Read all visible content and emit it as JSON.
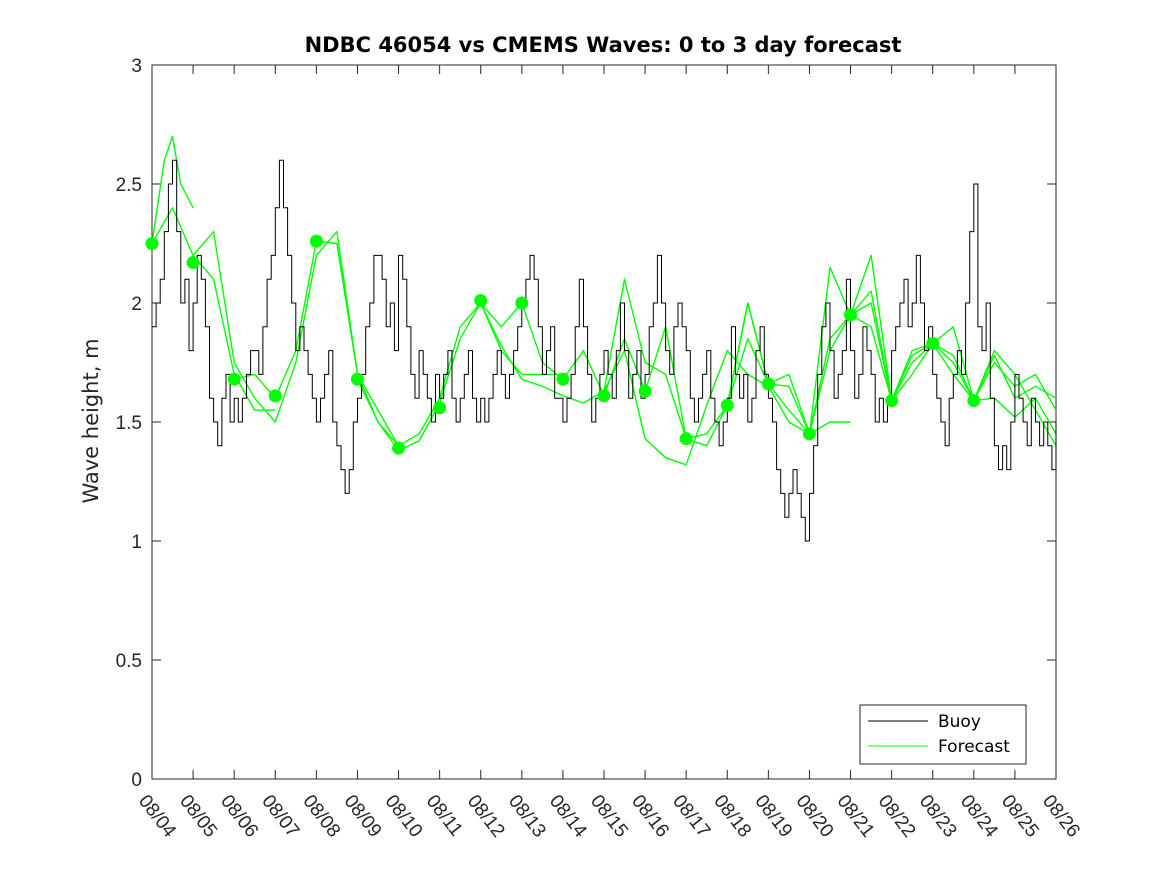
{
  "chart_data": {
    "type": "line",
    "title": "NDBC 46054 vs CMEMS Waves: 0 to 3 day forecast",
    "xlabel": "",
    "ylabel": "Wave height, m",
    "xlim": [
      0,
      22
    ],
    "ylim": [
      0,
      3
    ],
    "yticks": [
      0,
      0.5,
      1,
      1.5,
      2,
      2.5,
      3
    ],
    "ytick_labels": [
      "0",
      "0.5",
      "1",
      "1.5",
      "2",
      "2.5",
      "3"
    ],
    "xtick_labels": [
      "08/04",
      "08/05",
      "08/06",
      "08/07",
      "08/08",
      "08/09",
      "08/10",
      "08/11",
      "08/12",
      "08/13",
      "08/14",
      "08/15",
      "08/16",
      "08/17",
      "08/18",
      "08/19",
      "08/20",
      "08/21",
      "08/22",
      "08/23",
      "08/24",
      "08/25",
      "08/26"
    ],
    "legend": {
      "location": "bottom-right",
      "entries": [
        "Buoy",
        "Forecast"
      ]
    },
    "colors": {
      "buoy": "#000000",
      "forecast": "#00ff00"
    },
    "series": [
      {
        "name": "Buoy",
        "x": [
          0,
          0.1,
          0.2,
          0.3,
          0.4,
          0.5,
          0.6,
          0.7,
          0.8,
          0.9,
          1.0,
          1.1,
          1.2,
          1.3,
          1.4,
          1.5,
          1.6,
          1.7,
          1.8,
          1.9,
          2.0,
          2.1,
          2.2,
          2.3,
          2.4,
          2.5,
          2.6,
          2.7,
          2.8,
          2.9,
          3.0,
          3.1,
          3.2,
          3.3,
          3.4,
          3.5,
          3.6,
          3.7,
          3.8,
          3.9,
          4.0,
          4.1,
          4.2,
          4.3,
          4.4,
          4.5,
          4.6,
          4.7,
          4.8,
          4.9,
          5.0,
          5.1,
          5.2,
          5.3,
          5.4,
          5.5,
          5.6,
          5.7,
          5.8,
          5.9,
          6.0,
          6.1,
          6.2,
          6.3,
          6.4,
          6.5,
          6.6,
          6.7,
          6.8,
          6.9,
          7.0,
          7.1,
          7.2,
          7.3,
          7.4,
          7.5,
          7.6,
          7.7,
          7.8,
          7.9,
          8.0,
          8.1,
          8.2,
          8.3,
          8.4,
          8.5,
          8.6,
          8.7,
          8.8,
          8.9,
          9.0,
          9.1,
          9.2,
          9.3,
          9.4,
          9.5,
          9.6,
          9.7,
          9.8,
          9.9,
          10.0,
          10.1,
          10.2,
          10.3,
          10.4,
          10.5,
          10.6,
          10.7,
          10.8,
          10.9,
          11.0,
          11.1,
          11.2,
          11.3,
          11.4,
          11.5,
          11.6,
          11.7,
          11.8,
          11.9,
          12.0,
          12.1,
          12.2,
          12.3,
          12.4,
          12.5,
          12.6,
          12.7,
          12.8,
          12.9,
          13.0,
          13.1,
          13.2,
          13.3,
          13.4,
          13.5,
          13.6,
          13.7,
          13.8,
          13.9,
          14.0,
          14.1,
          14.2,
          14.3,
          14.4,
          14.5,
          14.6,
          14.7,
          14.8,
          14.9,
          15.0,
          15.1,
          15.2,
          15.3,
          15.4,
          15.5,
          15.6,
          15.7,
          15.8,
          15.9,
          16.0,
          16.1,
          16.2,
          16.3,
          16.4,
          16.5,
          16.6,
          16.7,
          16.8,
          16.9,
          17.0,
          17.1,
          17.2,
          17.3,
          17.4,
          17.5,
          17.6,
          17.7,
          17.8,
          17.9,
          18.0,
          18.1,
          18.2,
          18.3,
          18.4,
          18.5,
          18.6,
          18.7,
          18.8,
          18.9,
          19.0,
          19.1,
          19.2,
          19.3,
          19.4,
          19.5,
          19.6,
          19.7,
          19.8,
          19.9,
          20.0,
          20.1,
          20.2,
          20.3,
          20.4,
          20.5,
          20.6,
          20.7,
          20.8,
          20.9,
          21.0,
          21.1,
          21.2,
          21.3,
          21.4,
          21.5,
          21.6,
          21.7,
          21.8,
          21.9,
          22.0
        ],
        "values": [
          1.9,
          2.0,
          2.1,
          2.3,
          2.5,
          2.6,
          2.3,
          2.0,
          2.1,
          1.8,
          2.0,
          2.2,
          2.1,
          1.9,
          1.6,
          1.5,
          1.4,
          1.6,
          1.7,
          1.5,
          1.6,
          1.5,
          1.6,
          1.7,
          1.8,
          1.8,
          1.7,
          1.9,
          2.1,
          2.2,
          2.4,
          2.6,
          2.4,
          2.2,
          2.0,
          1.8,
          1.9,
          1.8,
          1.7,
          1.6,
          1.5,
          1.6,
          1.7,
          1.8,
          1.5,
          1.4,
          1.3,
          1.2,
          1.3,
          1.5,
          1.6,
          1.7,
          1.9,
          2.0,
          2.2,
          2.2,
          2.1,
          1.9,
          2.0,
          1.8,
          2.2,
          2.1,
          1.9,
          1.7,
          1.6,
          1.8,
          1.7,
          1.6,
          1.5,
          1.7,
          1.6,
          1.7,
          1.8,
          1.6,
          1.5,
          1.6,
          1.7,
          1.8,
          1.6,
          1.5,
          1.6,
          1.5,
          1.6,
          1.7,
          1.8,
          1.7,
          1.6,
          1.7,
          1.8,
          1.9,
          2.0,
          2.1,
          2.2,
          2.1,
          1.9,
          1.7,
          1.8,
          1.9,
          1.6,
          1.6,
          1.5,
          1.6,
          1.7,
          1.9,
          2.1,
          1.9,
          1.7,
          1.5,
          1.6,
          1.7,
          1.8,
          1.7,
          1.6,
          1.8,
          2.0,
          1.8,
          1.6,
          1.7,
          1.8,
          1.6,
          1.7,
          1.9,
          2.0,
          2.2,
          2.0,
          1.8,
          1.7,
          1.9,
          2.0,
          1.9,
          1.8,
          1.6,
          1.5,
          1.6,
          1.7,
          1.8,
          1.6,
          1.5,
          1.4,
          1.5,
          1.6,
          1.9,
          1.7,
          1.6,
          1.7,
          1.5,
          1.6,
          1.8,
          1.9,
          1.7,
          1.6,
          1.5,
          1.3,
          1.2,
          1.1,
          1.2,
          1.3,
          1.2,
          1.1,
          1.0,
          1.2,
          1.4,
          1.7,
          1.9,
          2.0,
          1.8,
          1.6,
          1.7,
          1.8,
          2.1,
          1.8,
          1.6,
          1.7,
          1.9,
          1.8,
          1.7,
          1.5,
          1.6,
          1.5,
          1.6,
          1.8,
          1.9,
          2.0,
          2.1,
          1.9,
          2.0,
          2.2,
          2.0,
          1.8,
          1.9,
          1.7,
          1.6,
          1.5,
          1.4,
          1.6,
          1.7,
          1.8,
          1.7,
          2.0,
          2.3,
          2.5,
          1.9,
          1.8,
          2.0,
          1.6,
          1.4,
          1.3,
          1.4,
          1.3,
          1.5,
          1.7,
          1.6,
          1.5,
          1.4,
          1.6,
          1.5,
          1.4,
          1.5,
          1.4,
          1.3,
          1.5
        ]
      },
      {
        "name": "Forecast",
        "x": [
          0,
          0.3,
          0.5,
          0.7,
          1.0
        ],
        "values": [
          2.25,
          2.6,
          2.7,
          2.5,
          2.4
        ]
      },
      {
        "name": "Forecast",
        "x": [
          0,
          0.5,
          1,
          1.5,
          2,
          2.5,
          3
        ],
        "values": [
          2.25,
          2.4,
          2.2,
          2.1,
          1.7,
          1.55,
          1.55
        ]
      },
      {
        "name": "Forecast",
        "x": [
          1,
          1.5,
          2,
          2.5,
          3,
          3.5,
          4,
          4.5,
          5,
          5.5,
          6
        ],
        "values": [
          2.2,
          2.3,
          1.75,
          1.6,
          1.5,
          1.75,
          2.2,
          2.3,
          1.7,
          1.5,
          1.4
        ]
      },
      {
        "name": "Forecast",
        "x": [
          2,
          2.5,
          3,
          3.5,
          4,
          4.5,
          5,
          5.5,
          6,
          6.5,
          7,
          7.5,
          8,
          8.5,
          9,
          9.5,
          10
        ],
        "values": [
          1.68,
          1.7,
          1.6,
          1.8,
          2.26,
          2.25,
          1.7,
          1.55,
          1.4,
          1.45,
          1.6,
          1.9,
          2.0,
          1.8,
          1.7,
          1.7,
          1.7
        ]
      },
      {
        "name": "Forecast",
        "x": [
          5,
          5.5,
          6,
          6.5,
          7,
          7.5,
          8,
          8.5,
          9,
          9.5,
          10,
          10.5,
          11,
          11.5,
          12,
          12.5,
          13,
          13.5,
          14,
          14.5,
          15,
          15.5,
          16,
          16.5,
          17
        ],
        "values": [
          1.68,
          1.5,
          1.38,
          1.42,
          1.58,
          1.85,
          2.0,
          1.82,
          1.68,
          1.65,
          1.61,
          1.58,
          1.63,
          1.8,
          1.43,
          1.35,
          1.32,
          1.57,
          1.8,
          1.7,
          1.65,
          1.5,
          1.45,
          1.5,
          1.5
        ]
      },
      {
        "name": "Forecast",
        "x": [
          8,
          8.5,
          9,
          9.5,
          10,
          10.5,
          11,
          11.5,
          12,
          12.5,
          13,
          13.5,
          14,
          14.5,
          15,
          15.5,
          16,
          16.5,
          17,
          17.5,
          18,
          18.5,
          19,
          19.5,
          20,
          20.5,
          21,
          21.5,
          22
        ],
        "values": [
          2.0,
          1.9,
          2.0,
          1.75,
          1.68,
          1.8,
          1.61,
          1.85,
          1.63,
          1.9,
          1.43,
          1.4,
          1.57,
          1.85,
          1.66,
          1.65,
          1.45,
          1.8,
          1.95,
          2.05,
          1.59,
          1.75,
          1.83,
          1.78,
          1.59,
          1.6,
          1.52,
          1.6,
          1.45
        ]
      },
      {
        "name": "Forecast",
        "x": [
          11,
          11.5,
          12,
          12.5,
          13,
          13.5,
          14,
          14.5,
          15,
          15.5,
          16,
          16.5,
          17,
          17.5,
          18,
          18.5,
          19,
          19.5,
          20,
          20.5,
          21,
          21.5,
          22
        ],
        "values": [
          1.63,
          2.1,
          1.75,
          1.7,
          1.43,
          1.45,
          1.57,
          2.0,
          1.66,
          1.55,
          1.45,
          1.85,
          1.95,
          1.9,
          1.59,
          1.78,
          1.83,
          1.75,
          1.59,
          1.75,
          1.65,
          1.7,
          1.55
        ]
      },
      {
        "name": "Forecast",
        "x": [
          14,
          14.5,
          15,
          15.5,
          16,
          16.5,
          17,
          17.5,
          18,
          18.5,
          19,
          19.5,
          20,
          20.5,
          21,
          21.5,
          22
        ],
        "values": [
          1.57,
          2.0,
          1.66,
          1.7,
          1.45,
          2.15,
          1.95,
          2.0,
          1.59,
          1.8,
          1.83,
          1.7,
          1.59,
          1.78,
          1.6,
          1.65,
          1.6
        ]
      },
      {
        "name": "Forecast",
        "x": [
          17,
          17.5,
          18,
          18.5,
          19,
          19.5,
          20,
          20.5,
          21,
          21.5,
          22
        ],
        "values": [
          1.95,
          2.2,
          1.59,
          1.7,
          1.83,
          1.9,
          1.59,
          1.8,
          1.7,
          1.55,
          1.4
        ]
      }
    ],
    "forecast_start_markers": {
      "x": [
        0,
        1,
        2,
        3,
        4,
        5,
        6,
        7,
        8,
        9,
        10,
        11,
        12,
        13,
        14,
        15,
        16,
        17,
        18,
        19,
        20
      ],
      "values": [
        2.25,
        2.17,
        1.68,
        1.61,
        2.26,
        1.68,
        1.39,
        1.56,
        2.01,
        2.0,
        1.68,
        1.61,
        1.63,
        1.43,
        1.57,
        1.66,
        1.45,
        1.95,
        1.59,
        1.83,
        1.59
      ]
    }
  }
}
